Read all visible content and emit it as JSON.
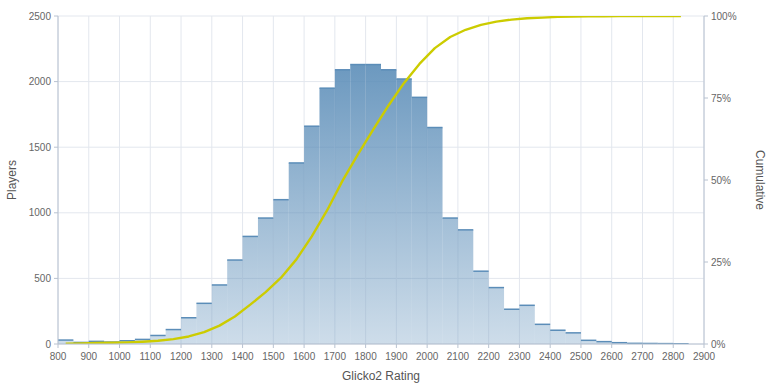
{
  "chart_data": {
    "type": "histogram",
    "title": "",
    "xlabel": "Glicko2 Rating",
    "ylabel": "Players",
    "y2label": "Cumulative",
    "color": "#5b8db8",
    "bins": [
      800,
      850,
      900,
      950,
      1000,
      1050,
      1100,
      1150,
      1200,
      1250,
      1300,
      1350,
      1400,
      1450,
      1500,
      1550,
      1600,
      1650,
      1700,
      1750,
      1800,
      1850,
      1900,
      1950,
      2000,
      2050,
      2100,
      2150,
      2200,
      2250,
      2300,
      2350,
      2400,
      2450,
      2500,
      2550,
      2600,
      2650,
      2700,
      2750,
      2800,
      2850
    ],
    "values": [
      30,
      12,
      20,
      15,
      25,
      35,
      65,
      110,
      200,
      310,
      450,
      640,
      820,
      960,
      1100,
      1380,
      1660,
      1950,
      2090,
      2130,
      2130,
      2090,
      2020,
      1880,
      1650,
      960,
      870,
      555,
      430,
      265,
      295,
      150,
      105,
      85,
      28,
      18,
      10,
      5,
      4,
      3,
      2
    ],
    "series": [
      {
        "type": "line",
        "axis": "y2",
        "color": "#cccc00",
        "x": [
          825,
          875,
          925,
          975,
          1025,
          1075,
          1125,
          1175,
          1225,
          1275,
          1325,
          1375,
          1425,
          1475,
          1525,
          1575,
          1625,
          1675,
          1725,
          1775,
          1825,
          1875,
          1925,
          1975,
          2025,
          2075,
          2125,
          2175,
          2225,
          2275,
          2325,
          2375,
          2425,
          2475,
          2525,
          2575,
          2625,
          2675,
          2725,
          2775,
          2825
        ],
        "values": [
          0.001,
          0.002,
          0.003,
          0.004,
          0.005,
          0.007,
          0.01,
          0.015,
          0.023,
          0.036,
          0.056,
          0.084,
          0.12,
          0.158,
          0.202,
          0.258,
          0.328,
          0.408,
          0.498,
          0.578,
          0.654,
          0.728,
          0.796,
          0.854,
          0.902,
          0.936,
          0.958,
          0.973,
          0.983,
          0.989,
          0.993,
          0.995,
          0.9972,
          0.9983,
          0.999,
          0.9993,
          0.9995,
          0.9997,
          0.9998,
          0.9999,
          1.0
        ]
      }
    ],
    "xlim": [
      800,
      2900
    ],
    "xticks": [
      800,
      900,
      1000,
      1100,
      1200,
      1300,
      1400,
      1500,
      1600,
      1700,
      1800,
      1900,
      2000,
      2100,
      2200,
      2300,
      2400,
      2500,
      2600,
      2700,
      2800,
      2900
    ],
    "ylim": [
      0,
      2500
    ],
    "yticks": [
      0,
      500,
      1000,
      1500,
      2000,
      2500
    ],
    "y2lim": [
      0,
      1.0
    ],
    "y2ticks": [
      {
        "value": 0,
        "label": "0%"
      },
      {
        "value": 0.25,
        "label": "25%"
      },
      {
        "value": 0.5,
        "label": "50%"
      },
      {
        "value": 0.75,
        "label": "75%"
      },
      {
        "value": 1.0,
        "label": "100%"
      }
    ],
    "grid": true
  }
}
